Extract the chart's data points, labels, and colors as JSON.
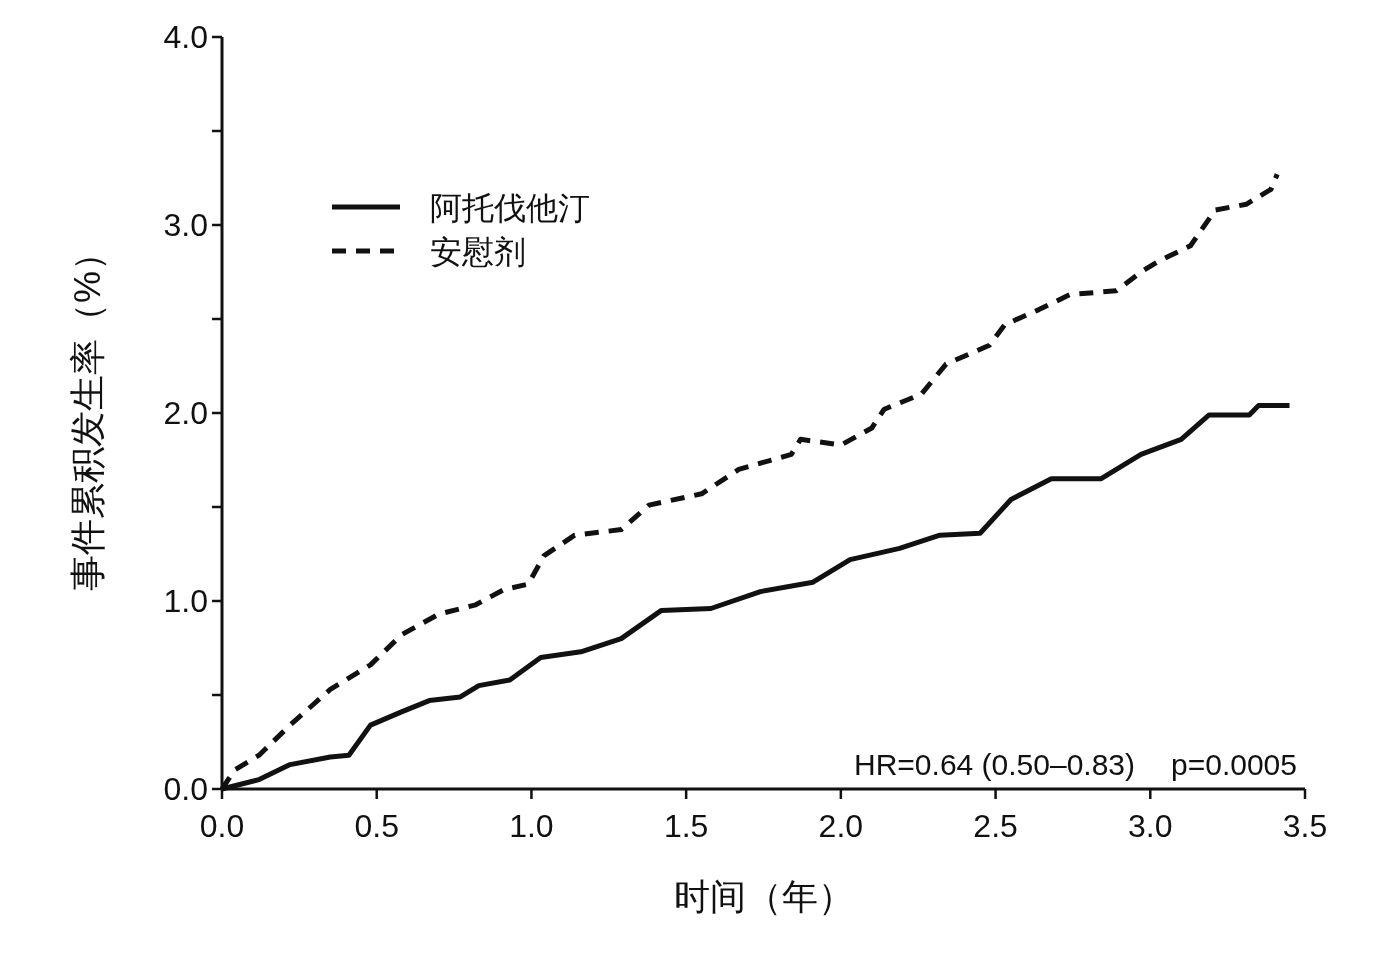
{
  "chart_data": {
    "type": "line",
    "xlabel": "时间（年）",
    "ylabel": "事件累积发生率（%）",
    "xlim": [
      0,
      3.5
    ],
    "ylim": [
      0,
      4
    ],
    "xticks": [
      {
        "value": 0,
        "label": "0.0"
      },
      0.5,
      {
        "value": 1,
        "label": "1.0"
      },
      1.5,
      {
        "value": 2,
        "label": "2.0"
      },
      2.5,
      {
        "value": 3,
        "label": "3.0"
      },
      3.5
    ],
    "yticks": [
      {
        "value": 0,
        "label": "0.0"
      },
      {
        "value": 0.5,
        "label": null
      },
      {
        "value": 1,
        "label": "1.0"
      },
      {
        "value": 1.5,
        "label": null
      },
      {
        "value": 2,
        "label": "2.0"
      },
      {
        "value": 2.5,
        "label": null
      },
      {
        "value": 3,
        "label": "3.0"
      },
      {
        "value": 3.5,
        "label": null
      },
      {
        "value": 4,
        "label": "4.0"
      }
    ],
    "legend": "top left",
    "annotations": [
      "HR=0.64 (0.50–0.83)",
      "p=0.0005"
    ],
    "series": [
      {
        "name": "阿托伐他汀",
        "color": "#111111",
        "line_style": "solid",
        "x": [
          0,
          0.12,
          0.22,
          0.35,
          0.41,
          0.48,
          0.58,
          0.67,
          0.77,
          0.83,
          0.93,
          1.03,
          1.16,
          1.29,
          1.42,
          1.58,
          1.74,
          1.91,
          2.03,
          2.19,
          2.32,
          2.45,
          2.55,
          2.68,
          2.84,
          2.97,
          3.1,
          3.19,
          3.32,
          3.35,
          3.45
        ],
        "values": [
          0,
          0.05,
          0.13,
          0.17,
          0.18,
          0.34,
          0.41,
          0.47,
          0.49,
          0.55,
          0.58,
          0.7,
          0.73,
          0.8,
          0.95,
          0.96,
          1.05,
          1.1,
          1.22,
          1.28,
          1.35,
          1.36,
          1.54,
          1.65,
          1.65,
          1.78,
          1.86,
          1.99,
          1.99,
          2.04,
          2.04
        ]
      },
      {
        "name": "安慰剂",
        "color": "#111111",
        "line_style": "dashed",
        "x": [
          0,
          0.04,
          0.12,
          0.22,
          0.35,
          0.48,
          0.58,
          0.7,
          0.82,
          0.91,
          0.99,
          1.04,
          1.14,
          1.29,
          1.38,
          1.55,
          1.67,
          1.84,
          1.87,
          2.0,
          2.1,
          2.14,
          2.26,
          2.34,
          2.48,
          2.53,
          2.64,
          2.74,
          2.89,
          2.97,
          3.03,
          3.13,
          3.21,
          3.31,
          3.39,
          3.41
        ],
        "values": [
          0,
          0.1,
          0.18,
          0.34,
          0.53,
          0.66,
          0.82,
          0.93,
          0.98,
          1.06,
          1.09,
          1.24,
          1.35,
          1.38,
          1.51,
          1.57,
          1.7,
          1.78,
          1.86,
          1.83,
          1.92,
          2.02,
          2.1,
          2.26,
          2.36,
          2.47,
          2.55,
          2.63,
          2.65,
          2.75,
          2.81,
          2.89,
          3.08,
          3.11,
          3.19,
          3.27
        ]
      }
    ]
  }
}
